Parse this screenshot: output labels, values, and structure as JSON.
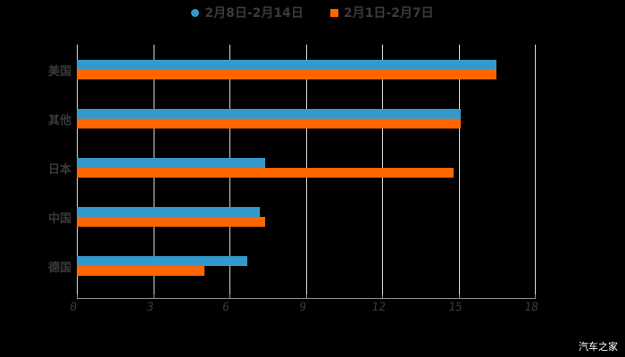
{
  "chart_data": {
    "type": "bar",
    "orientation": "horizontal",
    "title": "",
    "categories": [
      "美国",
      "其他",
      "日本",
      "中国",
      "德国"
    ],
    "series": [
      {
        "name": "2月8日-2月14日",
        "color": "#3399cc",
        "values": [
          16.5,
          15.1,
          7.4,
          7.2,
          6.7
        ]
      },
      {
        "name": "2月1日-2月7日",
        "color": "#ff6600",
        "values": [
          16.5,
          15.1,
          14.8,
          7.4,
          5.0
        ]
      }
    ],
    "xlabel": "",
    "ylabel": "",
    "xlim": [
      0,
      18
    ],
    "xticks": [
      "0",
      "3",
      "6",
      "9",
      "12",
      "15",
      "18"
    ],
    "grid": true,
    "legend_position": "top"
  },
  "legend": [
    {
      "label": "2月8日-2月14日",
      "color": "#3399cc"
    },
    {
      "label": "2月1日-2月7日",
      "color": "#ff6600"
    }
  ],
  "watermark": "汽车之家"
}
